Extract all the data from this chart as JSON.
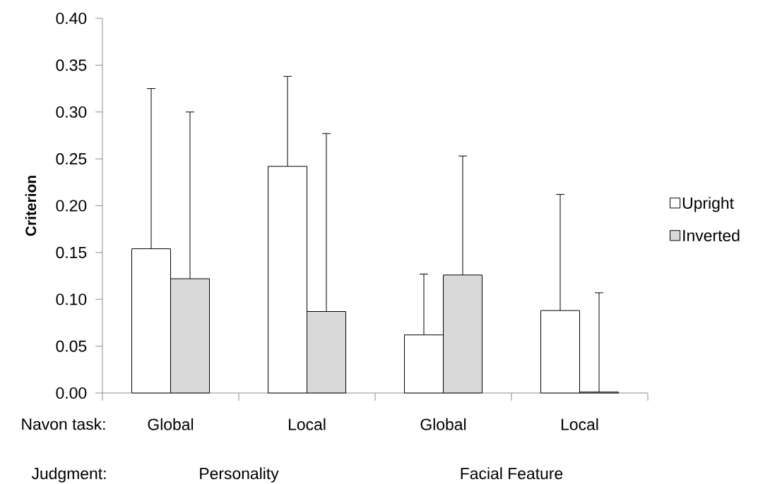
{
  "chart_data": {
    "type": "bar",
    "ylabel": "Criterion",
    "categories": [
      "Global",
      "Local",
      "Global",
      "Local"
    ],
    "series": [
      {
        "name": "Upright",
        "color": "#ffffff",
        "values": [
          0.154,
          0.242,
          0.062,
          0.088
        ],
        "errors": [
          [
            0.154,
            0.325
          ],
          [
            0.242,
            0.338
          ],
          [
            0.062,
            0.127
          ],
          [
            0.088,
            0.212
          ]
        ]
      },
      {
        "name": "Inverted",
        "color": "#d9d9d9",
        "values": [
          0.122,
          0.087,
          0.126,
          0.001
        ],
        "errors": [
          [
            0.122,
            0.3
          ],
          [
            0.087,
            0.277
          ],
          [
            0.126,
            0.253
          ],
          [
            0.001,
            0.107
          ]
        ]
      }
    ],
    "ylim": [
      0,
      0.4
    ],
    "yticks": [
      {
        "value": 0,
        "label": "0.00"
      },
      {
        "value": 0.05,
        "label": "0.05"
      },
      {
        "value": 0.1,
        "label": "0.10"
      },
      {
        "value": 0.15,
        "label": "0.15"
      },
      {
        "value": 0.2,
        "label": "0.20"
      },
      {
        "value": 0.25,
        "label": "0.25"
      },
      {
        "value": 0.3,
        "label": "0.30"
      },
      {
        "value": 0.35,
        "label": "0.35"
      },
      {
        "value": 0.4,
        "label": "0.40"
      }
    ],
    "grid": false,
    "legend": "right",
    "annotations": [
      "Navon task:",
      "Judgment:",
      "Personality",
      "Facial Feature"
    ]
  }
}
